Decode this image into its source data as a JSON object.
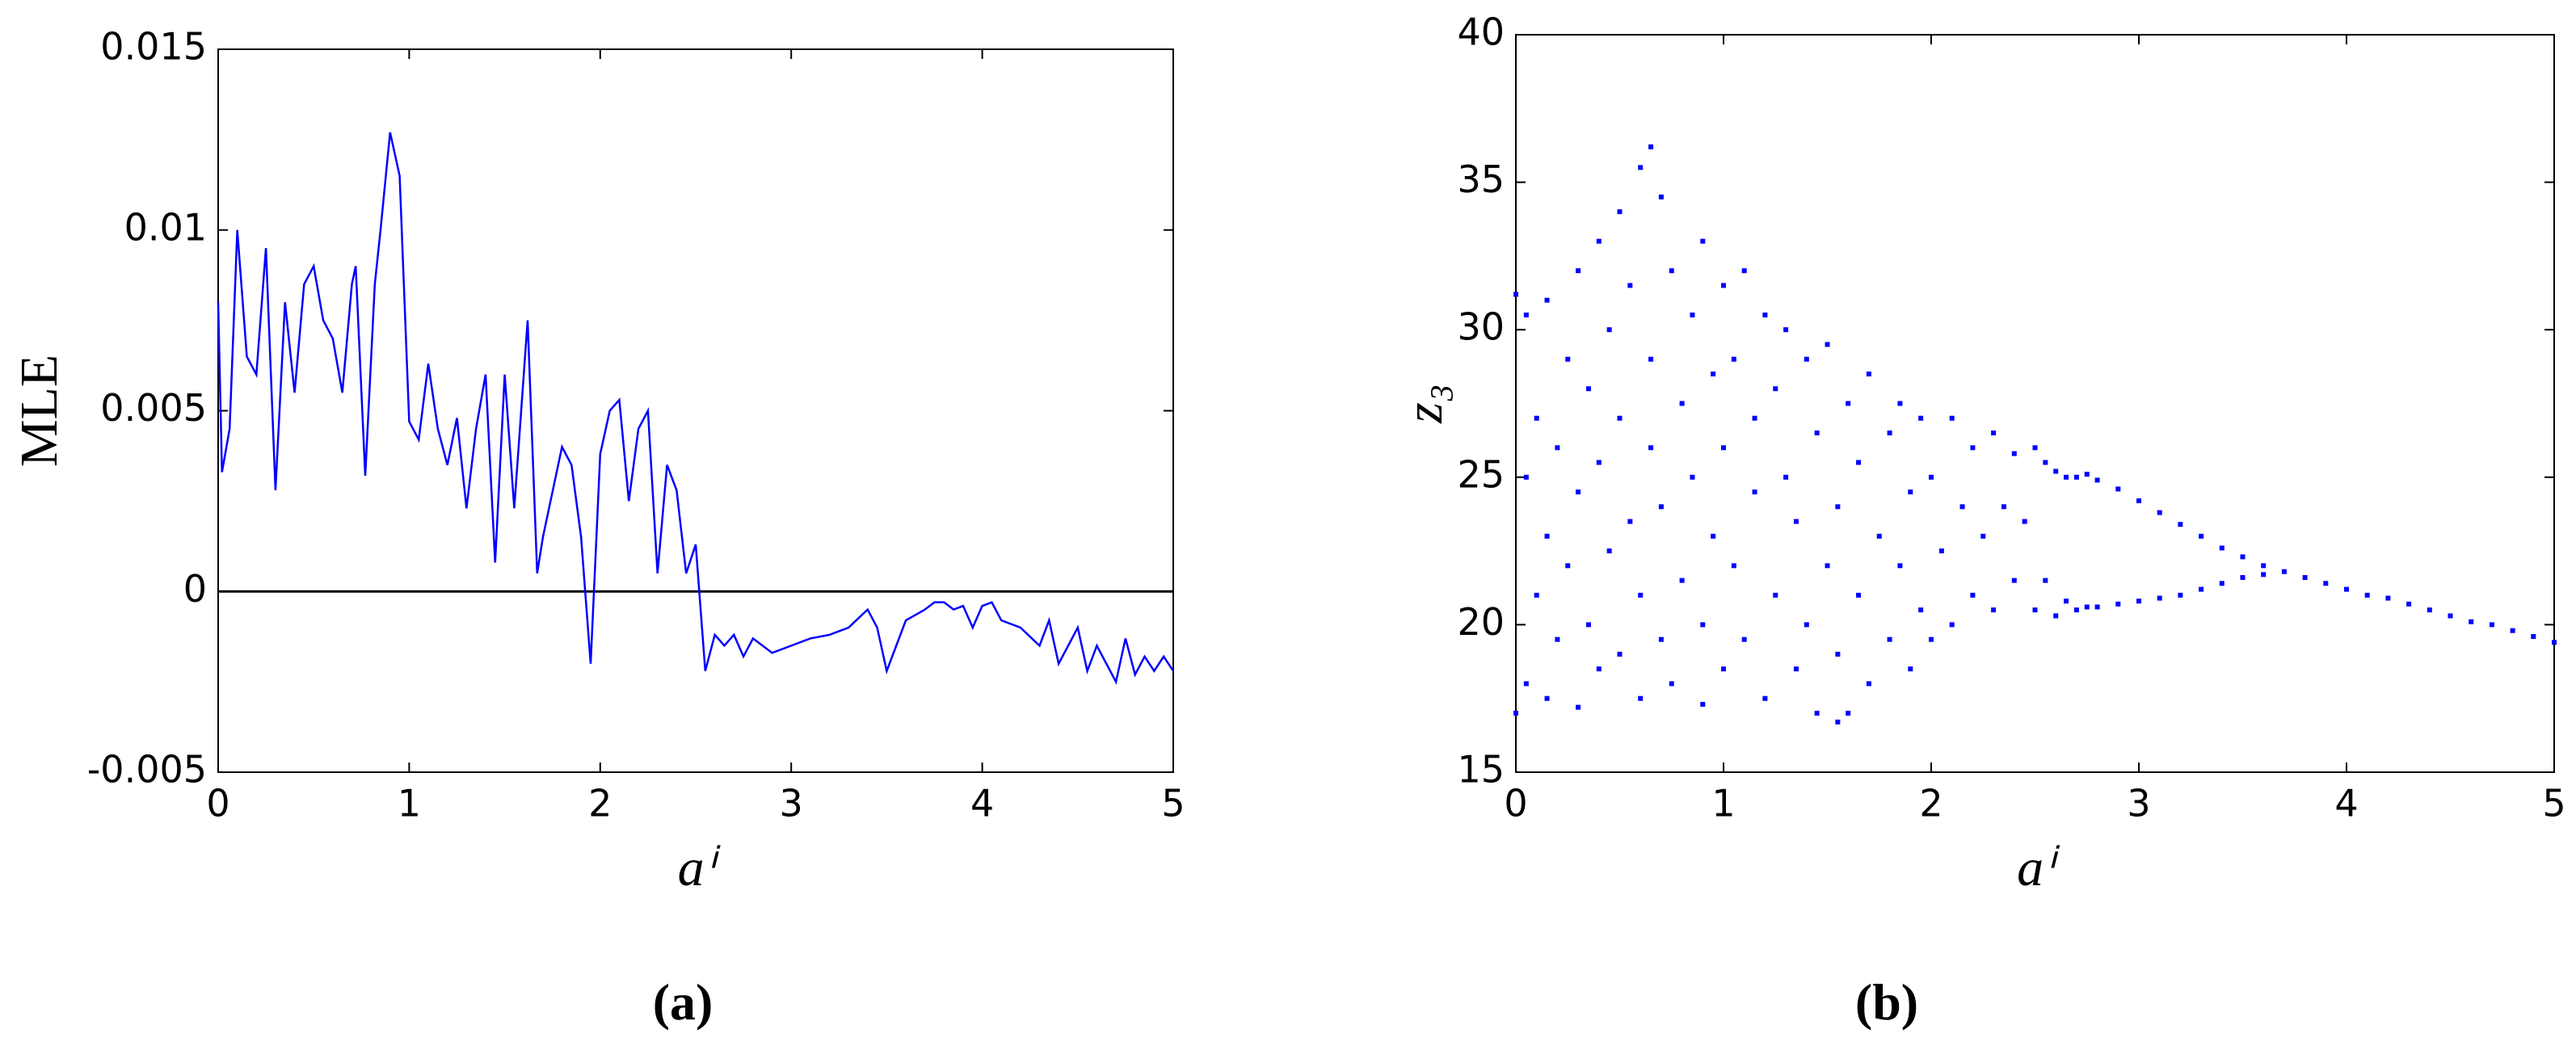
{
  "chart_data": [
    {
      "type": "line",
      "caption": "(a)",
      "xlabel": "aⁱ",
      "ylabel": "MLE",
      "color": "#0000ff",
      "hline": 0,
      "xlim": [
        0,
        5
      ],
      "ylim": [
        -0.005,
        0.015
      ],
      "xticks": [
        0,
        1,
        2,
        3,
        4,
        5
      ],
      "yticks": [
        -0.005,
        0,
        0.005,
        0.01,
        0.015
      ],
      "x": [
        0,
        0.02,
        0.06,
        0.1,
        0.15,
        0.2,
        0.25,
        0.3,
        0.35,
        0.4,
        0.45,
        0.5,
        0.55,
        0.6,
        0.65,
        0.7,
        0.72,
        0.77,
        0.82,
        0.85,
        0.9,
        0.95,
        1.0,
        1.05,
        1.1,
        1.15,
        1.2,
        1.25,
        1.3,
        1.35,
        1.4,
        1.45,
        1.5,
        1.55,
        1.62,
        1.67,
        1.7,
        1.8,
        1.85,
        1.9,
        1.95,
        2.0,
        2.05,
        2.1,
        2.15,
        2.2,
        2.25,
        2.3,
        2.35,
        2.4,
        2.45,
        2.5,
        2.55,
        2.6,
        2.65,
        2.7,
        2.75,
        2.8,
        2.9,
        3.0,
        3.1,
        3.2,
        3.3,
        3.4,
        3.45,
        3.5,
        3.55,
        3.6,
        3.7,
        3.75,
        3.8,
        3.85,
        3.9,
        3.95,
        4.0,
        4.05,
        4.1,
        4.2,
        4.3,
        4.35,
        4.4,
        4.5,
        4.55,
        4.6,
        4.7,
        4.75,
        4.8,
        4.85,
        4.9,
        4.95,
        5.0
      ],
      "values": [
        0.008,
        0.0033,
        0.0045,
        0.01,
        0.0065,
        0.006,
        0.0095,
        0.0028,
        0.008,
        0.0055,
        0.0085,
        0.009,
        0.0075,
        0.007,
        0.0055,
        0.0085,
        0.009,
        0.0032,
        0.0085,
        0.01,
        0.0127,
        0.0115,
        0.0047,
        0.0042,
        0.0063,
        0.0045,
        0.0035,
        0.0048,
        0.0023,
        0.0045,
        0.006,
        0.0008,
        0.006,
        0.0023,
        0.0075,
        0.0005,
        0.0015,
        0.004,
        0.0035,
        0.0015,
        -0.002,
        0.0038,
        0.005,
        0.0053,
        0.0025,
        0.0045,
        0.005,
        0.0005,
        0.0035,
        0.0028,
        0.0005,
        0.0013,
        -0.0022,
        -0.0012,
        -0.0015,
        -0.0012,
        -0.0018,
        -0.0013,
        -0.0017,
        -0.0015,
        -0.0013,
        -0.0012,
        -0.001,
        -0.0005,
        -0.001,
        -0.0022,
        -0.0015,
        -0.0008,
        -0.0005,
        -0.0003,
        -0.0003,
        -0.0005,
        -0.0004,
        -0.001,
        -0.0004,
        -0.0003,
        -0.0008,
        -0.001,
        -0.0015,
        -0.0008,
        -0.002,
        -0.001,
        -0.0022,
        -0.0015,
        -0.0025,
        -0.0013,
        -0.0023,
        -0.0018,
        -0.0022,
        -0.0018,
        -0.0022
      ]
    },
    {
      "type": "scatter",
      "caption": "(b)",
      "xlabel": "aⁱ",
      "ylabel": "z₃",
      "color": "#0000ff",
      "xlim": [
        0,
        5
      ],
      "ylim": [
        15,
        40
      ],
      "xticks": [
        0,
        1,
        2,
        3,
        4,
        5
      ],
      "yticks": [
        15,
        20,
        25,
        30,
        35,
        40
      ],
      "x": [
        0,
        0,
        0.05,
        0.05,
        0.05,
        0.1,
        0.1,
        0.15,
        0.15,
        0.15,
        0.2,
        0.2,
        0.25,
        0.25,
        0.3,
        0.3,
        0.3,
        0.35,
        0.35,
        0.4,
        0.4,
        0.4,
        0.45,
        0.45,
        0.5,
        0.5,
        0.5,
        0.55,
        0.55,
        0.6,
        0.6,
        0.6,
        0.65,
        0.65,
        0.65,
        0.7,
        0.7,
        0.7,
        0.75,
        0.75,
        0.8,
        0.8,
        0.85,
        0.85,
        0.9,
        0.9,
        0.9,
        0.95,
        0.95,
        1.0,
        1.0,
        1.0,
        1.05,
        1.05,
        1.1,
        1.1,
        1.15,
        1.15,
        1.2,
        1.2,
        1.25,
        1.25,
        1.3,
        1.3,
        1.35,
        1.35,
        1.4,
        1.4,
        1.45,
        1.45,
        1.5,
        1.5,
        1.55,
        1.55,
        1.55,
        1.6,
        1.6,
        1.65,
        1.65,
        1.7,
        1.7,
        1.75,
        1.8,
        1.8,
        1.85,
        1.85,
        1.9,
        1.9,
        1.95,
        1.95,
        2.0,
        2.0,
        2.05,
        2.1,
        2.1,
        2.15,
        2.2,
        2.2,
        2.25,
        2.3,
        2.3,
        2.35,
        2.4,
        2.4,
        2.45,
        2.5,
        2.5,
        2.55,
        2.55,
        2.6,
        2.6,
        2.65,
        2.65,
        2.7,
        2.7,
        2.75,
        2.75,
        2.8,
        2.8,
        2.9,
        2.9,
        3.0,
        3.0,
        3.1,
        3.1,
        3.2,
        3.2,
        3.3,
        3.3,
        3.4,
        3.4,
        3.5,
        3.5,
        3.6,
        3.6,
        3.7,
        3.8,
        3.9,
        4.0,
        4.1,
        4.2,
        4.3,
        4.4,
        4.5,
        4.6,
        4.7,
        4.8,
        4.9,
        5.0
      ],
      "values": [
        17,
        31.2,
        18,
        25,
        30.5,
        21,
        27,
        17.5,
        23,
        31,
        19.5,
        26,
        29,
        22,
        17.2,
        24.5,
        32,
        20,
        28,
        33,
        18.5,
        25.5,
        22.5,
        30,
        34,
        19,
        27,
        23.5,
        31.5,
        35.5,
        17.5,
        21,
        26,
        29,
        36.2,
        34.5,
        19.5,
        24,
        32,
        18,
        27.5,
        21.5,
        30.5,
        25,
        33,
        17.3,
        20,
        23,
        28.5,
        31.5,
        18.5,
        26,
        22,
        29,
        32,
        19.5,
        24.5,
        27,
        30.5,
        17.5,
        21,
        28,
        25,
        30,
        18.5,
        23.5,
        29,
        20,
        26.5,
        17,
        22,
        29.5,
        24,
        19,
        16.7,
        27.5,
        17,
        21,
        25.5,
        28.5,
        18,
        23,
        26.5,
        19.5,
        27.5,
        22,
        24.5,
        18.5,
        20.5,
        27,
        25,
        19.5,
        22.5,
        27,
        20,
        24,
        26,
        21,
        23,
        26.5,
        20.5,
        24,
        25.8,
        21.5,
        23.5,
        26,
        20.5,
        25.5,
        21.5,
        25.2,
        20.3,
        25,
        20.8,
        25,
        20.5,
        25.1,
        20.6,
        24.9,
        20.6,
        24.6,
        20.7,
        24.2,
        20.8,
        23.8,
        20.9,
        23.4,
        21,
        23,
        21.2,
        22.6,
        21.4,
        22.3,
        21.6,
        22,
        21.7,
        21.8,
        21.6,
        21.4,
        21.2,
        21,
        20.9,
        20.7,
        20.5,
        20.3,
        20.1,
        20,
        19.8,
        19.6,
        19.4
      ]
    }
  ]
}
